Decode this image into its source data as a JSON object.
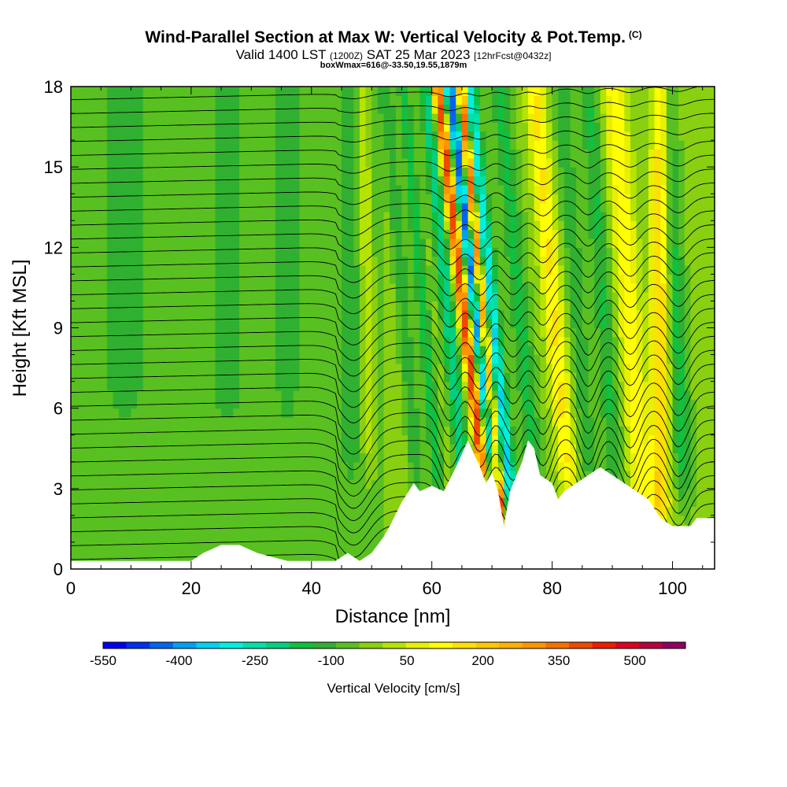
{
  "title": {
    "main": "Wind-Parallel Section at Max W: Vertical Velocity & Pot.Temp.",
    "copyright": "(C)",
    "valid_prefix": "Valid 1400 LST",
    "valid_utc": "(1200Z)",
    "valid_date": "SAT 25 Mar 2023",
    "forecast_info": "[12hrFcst@0432z]",
    "box_info": "boxWmax=616@-33.50,19.55,1879m"
  },
  "chart_data": {
    "type": "heatmap",
    "xlabel": "Distance [nm]",
    "ylabel": "Height [Kft MSL]",
    "xlim": [
      0,
      107
    ],
    "ylim": [
      0,
      18
    ],
    "x_ticks": [
      "0",
      "20",
      "40",
      "60",
      "80",
      "100"
    ],
    "x_tick_values": [
      0,
      20,
      40,
      60,
      80,
      100
    ],
    "y_ticks": [
      "0",
      "3",
      "6",
      "9",
      "12",
      "15",
      "18"
    ],
    "y_tick_values": [
      0,
      3,
      6,
      9,
      12,
      15,
      18
    ],
    "colorbar": {
      "title": "Vertical Velocity [cm/s]",
      "labels": [
        "-550",
        "-400",
        "-250",
        "-100",
        "50",
        "200",
        "350",
        "500"
      ],
      "label_values": [
        -550,
        -400,
        -250,
        -100,
        50,
        200,
        350,
        500
      ],
      "min": -550,
      "max": 600,
      "step": 50,
      "colors": [
        "#0000f0",
        "#0030f0",
        "#0064f0",
        "#00a0f0",
        "#00d2f0",
        "#00f0e0",
        "#00e0a8",
        "#00d080",
        "#10c040",
        "#30b030",
        "#58c020",
        "#88d010",
        "#b4e400",
        "#e8f000",
        "#ffff00",
        "#ffe000",
        "#ffc800",
        "#ffb000",
        "#ff9400",
        "#f87000",
        "#f04800",
        "#f01c00",
        "#e00020",
        "#b80040",
        "#900060",
        "#780070"
      ]
    },
    "terrain_kft": [
      [
        0,
        0.3
      ],
      [
        20,
        0.3
      ],
      [
        22,
        0.6
      ],
      [
        25,
        0.9
      ],
      [
        28,
        0.9
      ],
      [
        31,
        0.6
      ],
      [
        36,
        0.3
      ],
      [
        44,
        0.3
      ],
      [
        46,
        0.6
      ],
      [
        48,
        0.3
      ],
      [
        50,
        0.6
      ],
      [
        52,
        1.2
      ],
      [
        53,
        1.6
      ],
      [
        55,
        2.5
      ],
      [
        57,
        3.2
      ],
      [
        58,
        2.9
      ],
      [
        60,
        3.1
      ],
      [
        62,
        2.9
      ],
      [
        64,
        3.8
      ],
      [
        66,
        4.8
      ],
      [
        67,
        4.3
      ],
      [
        68,
        3.8
      ],
      [
        69,
        3.2
      ],
      [
        70,
        3.6
      ],
      [
        71,
        2.9
      ],
      [
        72,
        1.6
      ],
      [
        73,
        2.9
      ],
      [
        75,
        4.0
      ],
      [
        76,
        4.8
      ],
      [
        77,
        4.5
      ],
      [
        78,
        3.5
      ],
      [
        80,
        3.2
      ],
      [
        81,
        2.6
      ],
      [
        82,
        2.9
      ],
      [
        84,
        3.2
      ],
      [
        86,
        3.5
      ],
      [
        88,
        3.8
      ],
      [
        90,
        3.5
      ],
      [
        92,
        3.2
      ],
      [
        94,
        2.9
      ],
      [
        96,
        2.6
      ],
      [
        98,
        1.9
      ],
      [
        100,
        1.6
      ],
      [
        103,
        1.6
      ],
      [
        104,
        1.9
      ],
      [
        107,
        1.9
      ]
    ]
  }
}
